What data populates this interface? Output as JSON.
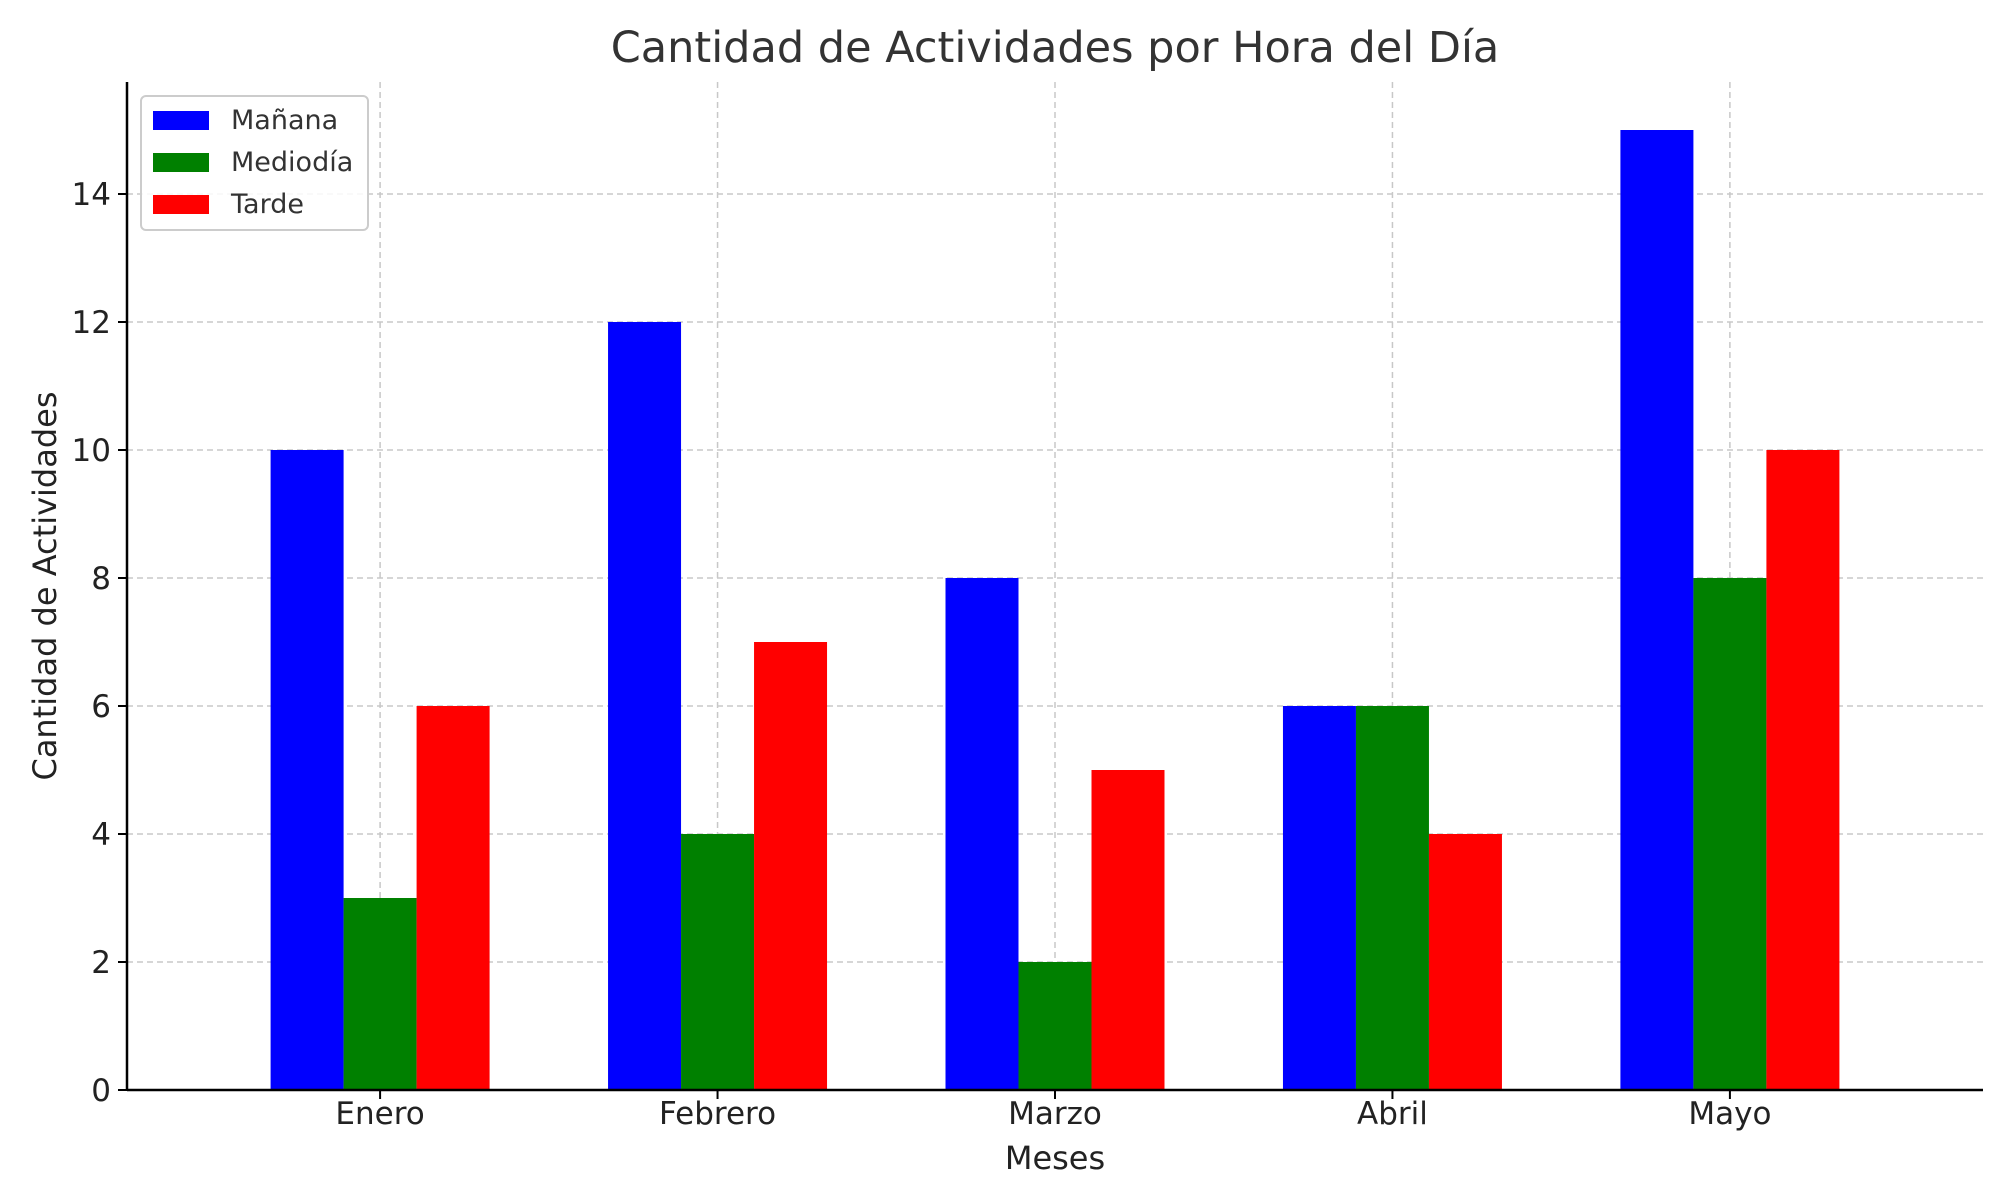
{
  "chart_data": {
    "type": "bar",
    "title": "Cantidad de Actividades por Hora del Día",
    "xlabel": "Meses",
    "ylabel": "Cantidad de Actividades",
    "categories": [
      "Enero",
      "Febrero",
      "Marzo",
      "Abril",
      "Mayo"
    ],
    "series": [
      {
        "name": "Mañana",
        "color": "#0000ff",
        "values": [
          10,
          12,
          8,
          6,
          15
        ]
      },
      {
        "name": "Mediodía",
        "color": "#008000",
        "values": [
          3,
          4,
          2,
          6,
          8
        ]
      },
      {
        "name": "Tarde",
        "color": "#ff0000",
        "values": [
          6,
          7,
          5,
          4,
          10
        ]
      }
    ],
    "ylim": [
      0,
      15.75
    ],
    "yticks": [
      0,
      2,
      4,
      6,
      8,
      10,
      12,
      14
    ],
    "grid": true,
    "legend_position": "top-left"
  }
}
